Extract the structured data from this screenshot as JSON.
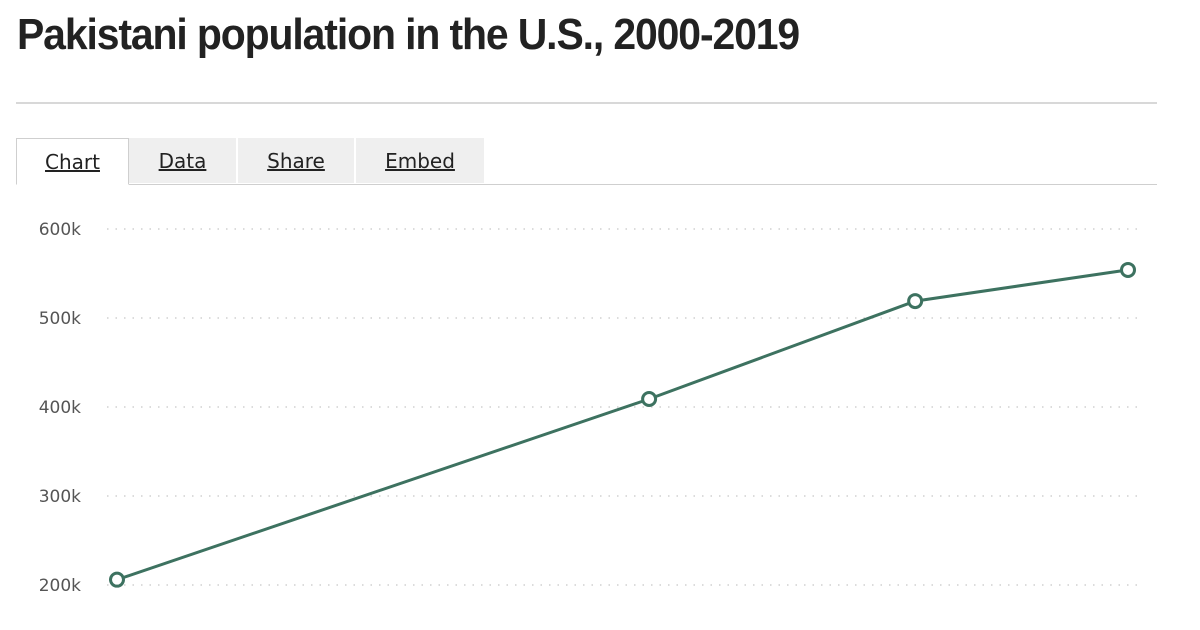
{
  "header": {
    "title": "Pakistani population in the U.S., 2000-2019"
  },
  "tabs": [
    {
      "label": "Chart",
      "active": true
    },
    {
      "label": "Data",
      "active": false
    },
    {
      "label": "Share",
      "active": false
    },
    {
      "label": "Embed",
      "active": false
    }
  ],
  "colors": {
    "line": "#3d7260",
    "grid": "#d0d0d0",
    "axis_text": "#555555"
  },
  "chart_data": {
    "type": "line",
    "title": "Pakistani population in the U.S., 2000-2019",
    "xlabel": "",
    "ylabel": "",
    "x": [
      2000,
      2010,
      2015,
      2019
    ],
    "series": [
      {
        "name": "Pakistani population",
        "values": [
          206000,
          409000,
          519000,
          554000
        ]
      }
    ],
    "y_ticks": [
      "200k",
      "300k",
      "400k",
      "500k",
      "600k"
    ],
    "ylim": [
      200000,
      600000
    ],
    "xlim": [
      2000,
      2019
    ],
    "grid": "horizontal dotted",
    "legend": "none",
    "markers": "hollow circles"
  }
}
